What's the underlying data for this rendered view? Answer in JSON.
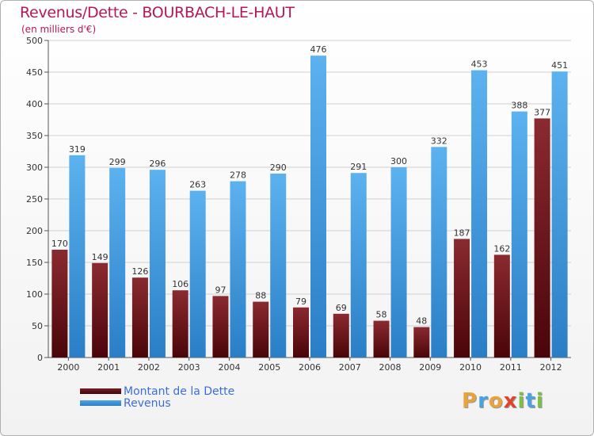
{
  "title": "Revenus/Dette - BOURBACH-LE-HAUT",
  "subtitle": "(en milliers d'€)",
  "logo": {
    "text": "Proxiti",
    "letters": [
      {
        "char": "P",
        "color": "#e8a33d"
      },
      {
        "char": "r",
        "color": "#4aa3df"
      },
      {
        "char": "o",
        "color": "#e8a33d"
      },
      {
        "char": "x",
        "color": "#e0452b"
      },
      {
        "char": "i",
        "color": "#7cc043"
      },
      {
        "char": "t",
        "color": "#4aa3df"
      },
      {
        "char": "i",
        "color": "#7cc043"
      }
    ]
  },
  "colors": {
    "dette": "#7a1c22",
    "revenus": "#4aa3e4",
    "axis": "#555555",
    "grid": "#d0d0d0",
    "title": "#b5175a",
    "legend_text": "#3b6fd8"
  },
  "chart_data": {
    "type": "bar",
    "title": "Revenus/Dette - BOURBACH-LE-HAUT",
    "ylabel": "(en milliers d'€)",
    "xlabel": "",
    "categories": [
      "2000",
      "2001",
      "2002",
      "2003",
      "2004",
      "2005",
      "2006",
      "2007",
      "2008",
      "2009",
      "2010",
      "2011",
      "2012"
    ],
    "series": [
      {
        "name": "Montant de la Dette",
        "values": [
          170,
          149,
          126,
          106,
          97,
          88,
          79,
          69,
          58,
          48,
          187,
          162,
          377
        ]
      },
      {
        "name": "Revenus",
        "values": [
          319,
          299,
          296,
          263,
          278,
          290,
          476,
          291,
          300,
          332,
          453,
          388,
          451
        ]
      }
    ],
    "ylim": [
      0,
      500
    ],
    "yticks": [
      0,
      50,
      100,
      150,
      200,
      250,
      300,
      350,
      400,
      450,
      500
    ],
    "grid": true,
    "legend_position": "bottom-left"
  }
}
